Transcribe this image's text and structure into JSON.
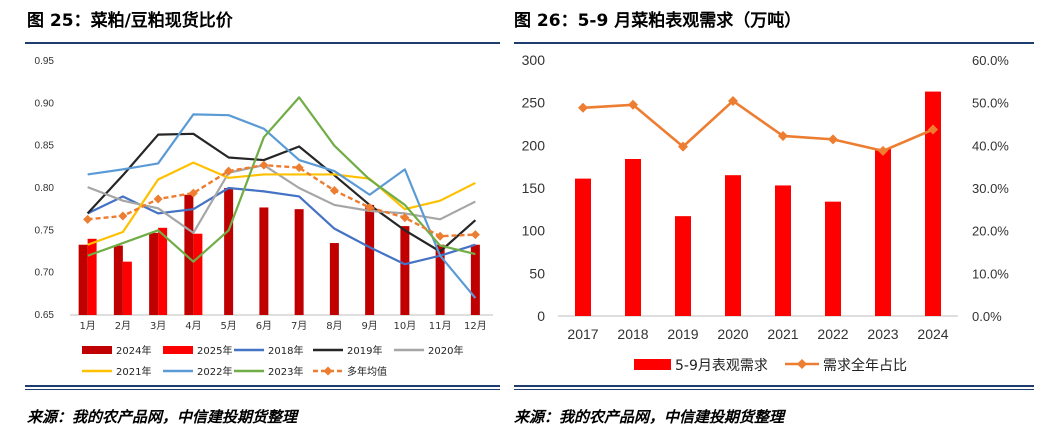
{
  "left_title": "图 25：菜粕/豆粕现货比价",
  "right_title": "图 26：5-9 月菜粕表观需求（万吨）",
  "left_source": "来源：我的农产品网，中信建投期货整理",
  "right_source": "来源：我的农产品网，中信建投期货整理",
  "chart_data": [
    {
      "type": "bar+line",
      "categories": [
        "1月",
        "2月",
        "3月",
        "4月",
        "5月",
        "6月",
        "7月",
        "8月",
        "9月",
        "10月",
        "11月",
        "12月"
      ],
      "ylim": [
        0.65,
        0.95
      ],
      "yticks": [
        "0.65",
        "0.70",
        "0.75",
        "0.80",
        "0.85",
        "0.90",
        "0.95"
      ],
      "bars": [
        {
          "name": "2024年",
          "color": "#c00000",
          "values": [
            0.733,
            0.732,
            0.747,
            0.792,
            0.8,
            0.777,
            0.775,
            0.735,
            0.78,
            0.755,
            0.733,
            0.733
          ]
        },
        {
          "name": "2025年",
          "color": "#ff0000",
          "values": [
            0.74,
            0.713,
            0.753,
            0.746,
            null,
            null,
            null,
            null,
            null,
            null,
            null,
            null
          ]
        }
      ],
      "lines": [
        {
          "name": "2018年",
          "color": "#4472c4",
          "values": [
            0.77,
            0.79,
            0.77,
            0.775,
            0.8,
            0.796,
            0.79,
            0.752,
            0.73,
            0.71,
            0.72,
            0.733
          ]
        },
        {
          "name": "2019年",
          "color": "#262626",
          "values": [
            0.77,
            0.815,
            0.863,
            0.864,
            0.836,
            0.833,
            0.849,
            0.815,
            0.78,
            0.75,
            0.725,
            0.762
          ]
        },
        {
          "name": "2020年",
          "color": "#a6a6a6",
          "values": [
            0.801,
            0.785,
            0.776,
            0.747,
            0.818,
            0.827,
            0.8,
            0.78,
            0.773,
            0.77,
            0.763,
            0.784
          ]
        },
        {
          "name": "2021年",
          "color": "#ffc000",
          "values": [
            0.733,
            0.748,
            0.81,
            0.83,
            0.812,
            0.816,
            0.816,
            0.816,
            0.811,
            0.775,
            0.785,
            0.806
          ]
        },
        {
          "name": "2022年",
          "color": "#5b9bd5",
          "values": [
            0.816,
            0.822,
            0.829,
            0.887,
            0.886,
            0.87,
            0.833,
            0.82,
            0.792,
            0.822,
            0.72,
            0.67
          ]
        },
        {
          "name": "2023年",
          "color": "#70ad47",
          "values": [
            0.72,
            0.735,
            0.75,
            0.713,
            0.75,
            0.86,
            0.907,
            0.85,
            0.81,
            0.78,
            0.732,
            0.722
          ]
        },
        {
          "name": "多年均值",
          "color": "#ed7d31",
          "dashed": true,
          "marker": "diamond",
          "values": [
            0.763,
            0.767,
            0.787,
            0.794,
            0.82,
            0.827,
            0.824,
            0.797,
            0.777,
            0.765,
            0.743,
            0.745
          ]
        }
      ]
    },
    {
      "type": "bar+line",
      "categories": [
        "2017",
        "2018",
        "2019",
        "2020",
        "2021",
        "2022",
        "2023",
        "2024"
      ],
      "ylim_left": [
        0,
        300
      ],
      "yticks_left": [
        "0",
        "50",
        "100",
        "150",
        "200",
        "250",
        "300"
      ],
      "ylim_right": [
        0,
        60
      ],
      "yticks_right": [
        "0.0%",
        "10.0%",
        "20.0%",
        "30.0%",
        "40.0%",
        "50.0%",
        "60.0%"
      ],
      "bar": {
        "name": "5-9月表观需求",
        "color": "#ff0000",
        "values": [
          161,
          184,
          117,
          165,
          153,
          134,
          196,
          263
        ]
      },
      "line": {
        "name": "需求全年占比",
        "color": "#ed7d31",
        "marker": "diamond",
        "values": [
          48.8,
          49.5,
          39.7,
          50.4,
          42.2,
          41.4,
          38.7,
          43.7
        ]
      }
    }
  ]
}
